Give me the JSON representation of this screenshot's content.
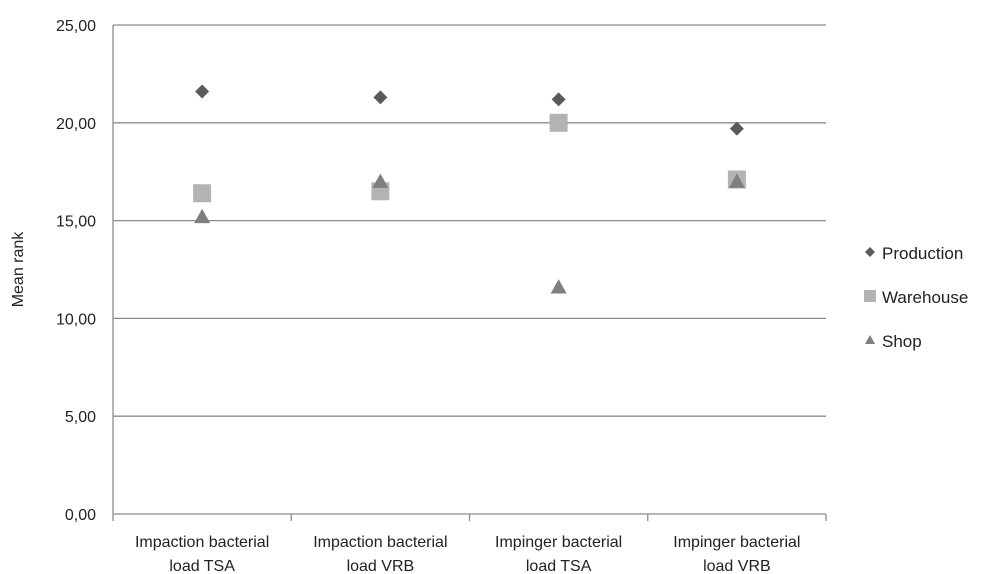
{
  "chart_data": {
    "type": "scatter",
    "title": "",
    "xlabel": "",
    "ylabel": "Mean rank",
    "ylim": [
      0,
      25
    ],
    "yticks": [
      "0,00",
      "5,00",
      "10,00",
      "15,00",
      "20,00",
      "25,00"
    ],
    "categories": [
      [
        "Impaction bacterial",
        "load TSA"
      ],
      [
        "Impaction bacterial",
        "load VRB"
      ],
      [
        "Impinger bacterial",
        "load TSA"
      ],
      [
        "Impinger bacterial",
        "load VRB"
      ]
    ],
    "grid": true,
    "legend_position": "right",
    "series": [
      {
        "name": "Production",
        "marker": "diamond",
        "color": "#5a5a5a",
        "values": [
          21.6,
          21.3,
          21.2,
          19.7
        ]
      },
      {
        "name": "Warehouse",
        "marker": "square",
        "color": "#b3b3b3",
        "values": [
          16.4,
          16.5,
          20.0,
          17.1
        ]
      },
      {
        "name": "Shop",
        "marker": "triangle",
        "color": "#7f7f7f",
        "values": [
          15.2,
          17.0,
          11.6,
          17.0
        ]
      }
    ]
  }
}
